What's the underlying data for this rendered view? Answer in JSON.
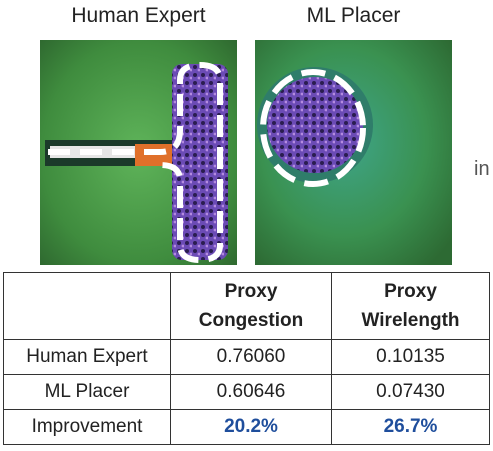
{
  "labels": {
    "left": "Human Expert",
    "right": "ML Placer",
    "cut": "in"
  },
  "table": {
    "header": [
      [
        "Proxy",
        "Congestion"
      ],
      [
        "Proxy",
        "Wirelength"
      ]
    ],
    "rows": [
      [
        "Human Expert",
        "0.76060",
        "0.10135"
      ],
      [
        "ML Placer",
        "0.60646",
        "0.07430"
      ],
      [
        "Improvement",
        "20.2%",
        "26.7%"
      ]
    ]
  }
}
